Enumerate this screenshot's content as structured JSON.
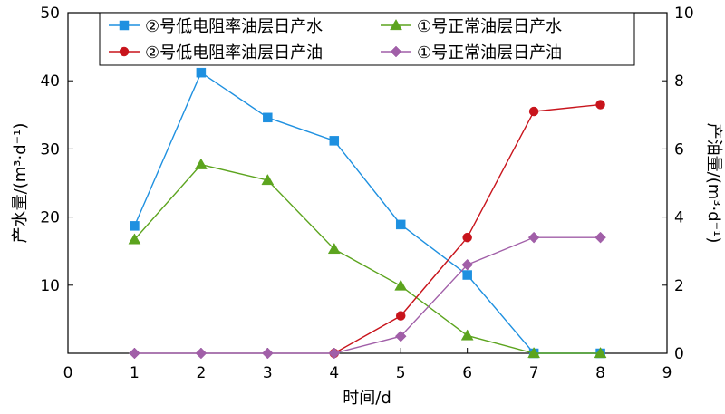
{
  "chart_data": {
    "type": "line",
    "xlabel": "时间/d",
    "ylabel_left": "产水量/(m³·d⁻¹)",
    "ylabel_right": "产油量/(m³·d⁻¹)",
    "xlim": [
      0,
      9
    ],
    "ylim_left": [
      0,
      50
    ],
    "ylim_right": [
      0,
      10
    ],
    "xticks": [
      "0",
      "1",
      "2",
      "3",
      "4",
      "5",
      "6",
      "7",
      "8",
      "9"
    ],
    "yticks_left": [
      "10",
      "20",
      "30",
      "40",
      "50"
    ],
    "yticks_right": [
      "0",
      "2",
      "4",
      "6",
      "8",
      "10"
    ],
    "grid": false,
    "legend_position": "top",
    "series": [
      {
        "name": "②号低电阻率油层日产水",
        "axis": "left",
        "color": "#1e90e0",
        "marker": "square",
        "x": [
          1,
          2,
          3,
          4,
          5,
          6,
          7,
          8
        ],
        "y": [
          18.7,
          41.2,
          34.6,
          31.2,
          18.9,
          11.5,
          0,
          0
        ]
      },
      {
        "name": "①号正常油层日产水",
        "axis": "left",
        "color": "#5ca41e",
        "marker": "triangle",
        "x": [
          1,
          2,
          3,
          4,
          5,
          6,
          7,
          8
        ],
        "y": [
          16.7,
          27.7,
          25.4,
          15.3,
          9.9,
          2.6,
          0,
          0
        ]
      },
      {
        "name": "②号低电阻率油层日产油",
        "axis": "right",
        "color": "#c8141c",
        "marker": "circle",
        "x": [
          4,
          5,
          6,
          7,
          8
        ],
        "y": [
          0,
          1.1,
          3.4,
          7.1,
          7.3
        ]
      },
      {
        "name": "①号正常油层日产油",
        "axis": "right",
        "color": "#a15fa8",
        "marker": "diamond",
        "x": [
          1,
          2,
          3,
          4,
          5,
          6,
          7,
          8
        ],
        "y": [
          0,
          0,
          0,
          0,
          0.5,
          2.6,
          3.4,
          3.4
        ]
      }
    ]
  }
}
